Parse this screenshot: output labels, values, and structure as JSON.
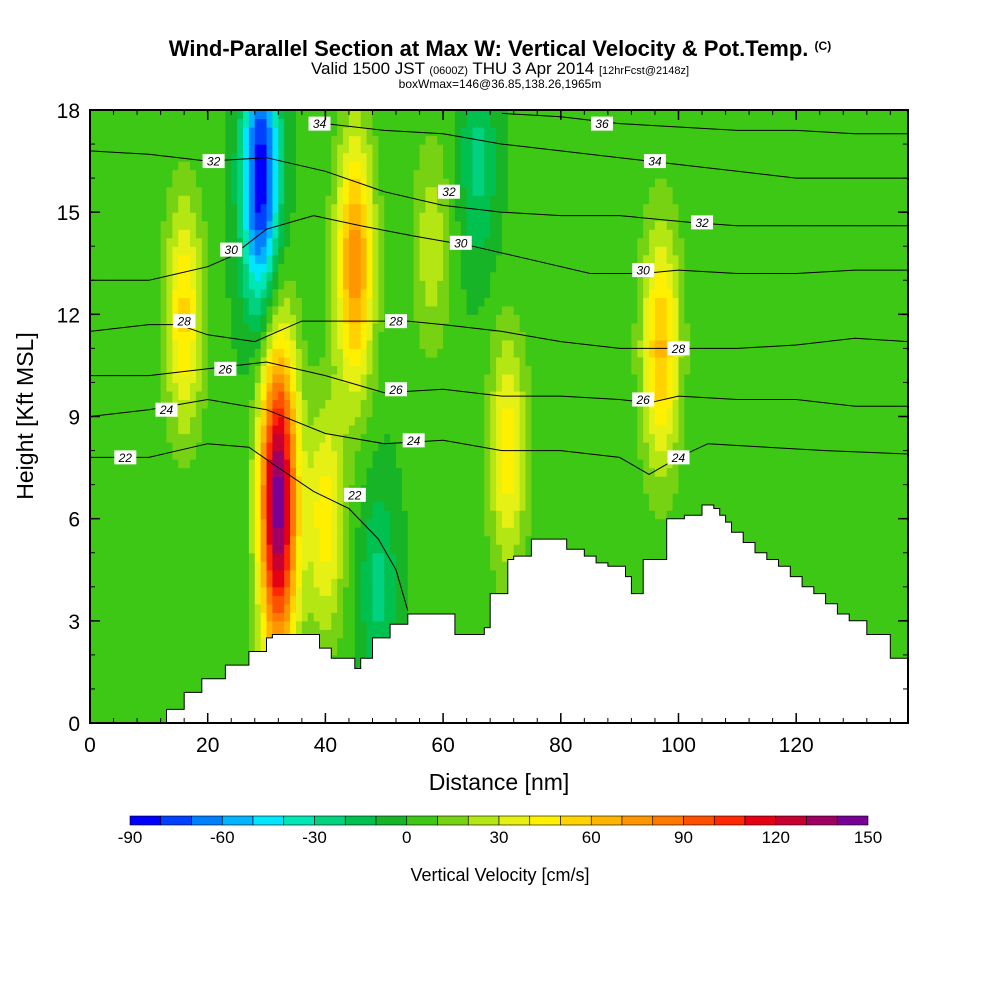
{
  "title": {
    "main": "Wind-Parallel Section at Max W: Vertical Velocity & Pot.Temp.",
    "copyright": "(C)",
    "valid_prefix": "Valid 1500 JST",
    "utc": "(0600Z)",
    "valid_date": "THU 3 Apr 2014",
    "fcst": "[12hrFcst@2148z]",
    "box": "boxWmax=146@36.85,138.26,1965m"
  },
  "chart_data": {
    "type": "heatmap",
    "xlabel": "Distance [nm]",
    "ylabel": "Height [Kft MSL]",
    "xlim": [
      0,
      139
    ],
    "ylim": [
      0,
      18
    ],
    "x_ticks": [
      "0",
      "20",
      "40",
      "60",
      "80",
      "100",
      "120"
    ],
    "y_ticks": [
      "0",
      "3",
      "6",
      "9",
      "12",
      "15",
      "18"
    ],
    "colorbar": {
      "title": "Vertical Velocity [cm/s]",
      "tick_labels": [
        "-90",
        "-60",
        "-30",
        "0",
        "30",
        "60",
        "90",
        "120",
        "150"
      ],
      "levels": [
        -90,
        -80,
        -70,
        -60,
        -50,
        -40,
        -30,
        -20,
        -10,
        0,
        10,
        20,
        30,
        40,
        50,
        60,
        70,
        80,
        90,
        100,
        110,
        120,
        130,
        140,
        150
      ],
      "colors": [
        "#0000ff",
        "#0040ff",
        "#0080ff",
        "#00b4ff",
        "#00e6ff",
        "#00e6b4",
        "#00d280",
        "#00c050",
        "#18b428",
        "#3cc814",
        "#78d214",
        "#b4e614",
        "#e6f014",
        "#fff000",
        "#ffd200",
        "#ffb400",
        "#ff9600",
        "#ff7800",
        "#ff5000",
        "#ff2800",
        "#e60014",
        "#c80032",
        "#a00064",
        "#780096"
      ]
    },
    "terrain": {
      "x": [
        0,
        10,
        13,
        16,
        19,
        23,
        27,
        30,
        31,
        37,
        39,
        41,
        45,
        46,
        48,
        51,
        54,
        60,
        62,
        65,
        67,
        68,
        71,
        72,
        75,
        79,
        81,
        84,
        86,
        88,
        91,
        92,
        93,
        94,
        97,
        98,
        101,
        104,
        105,
        106,
        107,
        108,
        109,
        111,
        113,
        115,
        117,
        119,
        121,
        123,
        125,
        127,
        129,
        132,
        136,
        137,
        139
      ],
      "z": [
        0,
        0,
        0.4,
        0.9,
        1.3,
        1.7,
        2.1,
        2.5,
        2.6,
        2.6,
        2.2,
        1.9,
        1.6,
        1.9,
        2.5,
        2.9,
        3.2,
        3.2,
        2.6,
        2.6,
        2.8,
        3.8,
        4.8,
        4.9,
        5.4,
        5.4,
        5.1,
        4.9,
        4.7,
        4.6,
        4.3,
        3.8,
        3.8,
        4.8,
        4.8,
        6.0,
        6.1,
        6.4,
        6.4,
        6.3,
        6.1,
        5.9,
        5.6,
        5.3,
        5.0,
        4.8,
        4.6,
        4.3,
        4.0,
        3.8,
        3.5,
        3.2,
        3.0,
        2.6,
        1.9,
        1.9,
        1.9
      ]
    },
    "vertical_velocity_features": [
      {
        "x": 32,
        "z": 6.5,
        "w": 146
      },
      {
        "x": 29,
        "z": 16,
        "w": -90
      },
      {
        "x": 45,
        "z": 13.5,
        "w": 75
      },
      {
        "x": 16,
        "z": 12,
        "w": 50
      },
      {
        "x": 97,
        "z": 11,
        "w": 60
      },
      {
        "x": 71,
        "z": 8,
        "w": 45
      },
      {
        "x": 40,
        "z": 6,
        "w": 45
      },
      {
        "x": 49,
        "z": 4,
        "w": -25
      },
      {
        "x": 66,
        "z": 16.5,
        "w": -25
      },
      {
        "x": 58,
        "z": 14,
        "w": 25
      }
    ],
    "theta_contours": [
      {
        "label": "22",
        "points": [
          [
            0,
            7.8
          ],
          [
            10,
            7.8
          ],
          [
            20,
            8.2
          ],
          [
            27,
            8.1
          ],
          [
            32,
            7.5
          ],
          [
            38,
            6.8
          ],
          [
            44,
            6.3
          ],
          [
            49,
            5.4
          ],
          [
            52,
            4.5
          ],
          [
            54,
            3.3
          ]
        ]
      },
      {
        "label": "24",
        "points": [
          [
            0,
            9.0
          ],
          [
            10,
            9.2
          ],
          [
            20,
            9.5
          ],
          [
            30,
            9.2
          ],
          [
            40,
            8.5
          ],
          [
            50,
            8.2
          ],
          [
            60,
            8.3
          ],
          [
            70,
            8.0
          ],
          [
            80,
            8.0
          ],
          [
            90,
            7.8
          ],
          [
            95,
            7.3
          ],
          [
            100,
            7.8
          ],
          [
            105,
            8.2
          ],
          [
            115,
            8.1
          ],
          [
            125,
            8.0
          ],
          [
            139,
            7.9
          ]
        ]
      },
      {
        "label": "26",
        "points": [
          [
            0,
            10.2
          ],
          [
            10,
            10.2
          ],
          [
            20,
            10.4
          ],
          [
            30,
            10.6
          ],
          [
            40,
            10.2
          ],
          [
            50,
            9.7
          ],
          [
            60,
            9.8
          ],
          [
            70,
            9.6
          ],
          [
            80,
            9.6
          ],
          [
            90,
            9.5
          ],
          [
            95,
            9.4
          ],
          [
            100,
            9.6
          ],
          [
            110,
            9.5
          ],
          [
            120,
            9.5
          ],
          [
            130,
            9.3
          ],
          [
            139,
            9.3
          ]
        ]
      },
      {
        "label": "28",
        "points": [
          [
            0,
            11.5
          ],
          [
            10,
            11.7
          ],
          [
            15,
            11.7
          ],
          [
            20,
            11.4
          ],
          [
            28,
            11.2
          ],
          [
            36,
            11.8
          ],
          [
            45,
            11.8
          ],
          [
            54,
            11.8
          ],
          [
            60,
            11.7
          ],
          [
            70,
            11.5
          ],
          [
            80,
            11.2
          ],
          [
            90,
            11.0
          ],
          [
            98,
            11.0
          ],
          [
            110,
            11.0
          ],
          [
            120,
            11.1
          ],
          [
            130,
            11.3
          ],
          [
            139,
            11.2
          ]
        ]
      },
      {
        "label": "30",
        "points": [
          [
            0,
            13.0
          ],
          [
            10,
            13.0
          ],
          [
            15,
            13.2
          ],
          [
            20,
            13.4
          ],
          [
            24,
            13.7
          ],
          [
            30,
            14.5
          ],
          [
            38,
            14.9
          ],
          [
            46,
            14.6
          ],
          [
            55,
            14.3
          ],
          [
            65,
            14.0
          ],
          [
            75,
            13.6
          ],
          [
            85,
            13.2
          ],
          [
            94,
            13.2
          ],
          [
            100,
            13.3
          ],
          [
            110,
            13.2
          ],
          [
            120,
            13.2
          ],
          [
            130,
            13.3
          ],
          [
            139,
            13.3
          ]
        ]
      },
      {
        "label": "32",
        "points": [
          [
            0,
            16.8
          ],
          [
            10,
            16.7
          ],
          [
            20,
            16.5
          ],
          [
            30,
            16.6
          ],
          [
            40,
            16.2
          ],
          [
            50,
            15.6
          ],
          [
            60,
            15.2
          ],
          [
            70,
            15.0
          ],
          [
            80,
            14.9
          ],
          [
            90,
            14.9
          ],
          [
            102,
            14.7
          ],
          [
            110,
            14.6
          ],
          [
            120,
            14.6
          ],
          [
            130,
            14.6
          ],
          [
            139,
            14.6
          ]
        ]
      },
      {
        "label": "34",
        "points": [
          [
            40,
            17.6
          ],
          [
            50,
            17.4
          ],
          [
            60,
            17.3
          ],
          [
            70,
            17.0
          ],
          [
            80,
            16.8
          ],
          [
            90,
            16.6
          ],
          [
            100,
            16.4
          ],
          [
            110,
            16.2
          ],
          [
            120,
            16.0
          ],
          [
            130,
            16.0
          ],
          [
            139,
            16.0
          ]
        ]
      },
      {
        "label": "36",
        "points": [
          [
            70,
            17.9
          ],
          [
            80,
            17.8
          ],
          [
            90,
            17.6
          ],
          [
            100,
            17.5
          ],
          [
            110,
            17.4
          ],
          [
            120,
            17.4
          ],
          [
            130,
            17.3
          ],
          [
            139,
            17.3
          ]
        ]
      }
    ],
    "contour_labels": [
      {
        "text": "34",
        "x": 39,
        "z": 17.6
      },
      {
        "text": "36",
        "x": 87,
        "z": 17.6
      },
      {
        "text": "32",
        "x": 21,
        "z": 16.5
      },
      {
        "text": "34",
        "x": 96,
        "z": 16.5
      },
      {
        "text": "32",
        "x": 61,
        "z": 15.6
      },
      {
        "text": "32",
        "x": 104,
        "z": 14.7
      },
      {
        "text": "30",
        "x": 24,
        "z": 13.9
      },
      {
        "text": "30",
        "x": 63,
        "z": 14.1
      },
      {
        "text": "30",
        "x": 94,
        "z": 13.3
      },
      {
        "text": "28",
        "x": 16,
        "z": 11.8
      },
      {
        "text": "28",
        "x": 52,
        "z": 11.8
      },
      {
        "text": "28",
        "x": 100,
        "z": 11.0
      },
      {
        "text": "26",
        "x": 23,
        "z": 10.4
      },
      {
        "text": "26",
        "x": 52,
        "z": 9.8
      },
      {
        "text": "26",
        "x": 94,
        "z": 9.5
      },
      {
        "text": "24",
        "x": 13,
        "z": 9.2
      },
      {
        "text": "24",
        "x": 55,
        "z": 8.3
      },
      {
        "text": "24",
        "x": 100,
        "z": 7.8
      },
      {
        "text": "22",
        "x": 6,
        "z": 7.8
      },
      {
        "text": "22",
        "x": 45,
        "z": 6.7
      }
    ]
  }
}
